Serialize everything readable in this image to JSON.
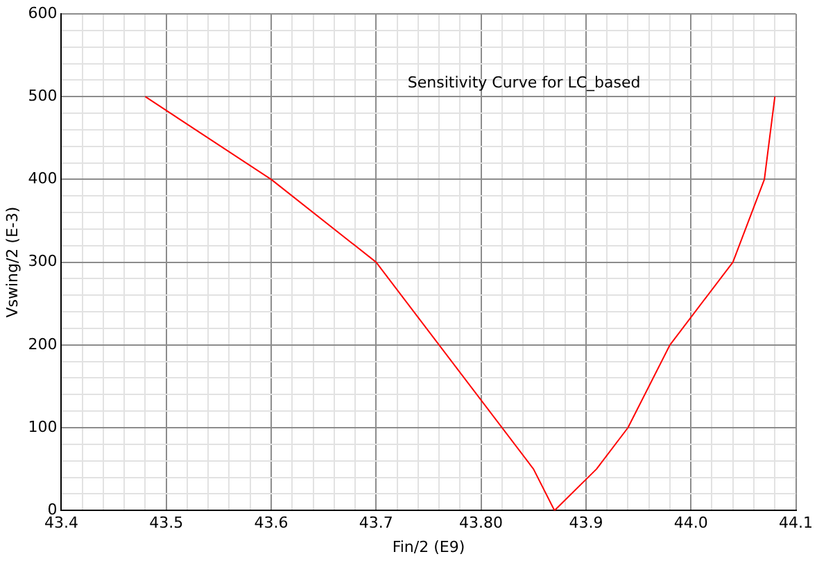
{
  "chart_data": {
    "type": "line",
    "title": "Sensitivity Curve for LC_based",
    "xlabel": "Fin/2 (E9)",
    "ylabel": "Vswing/2 (E-3)",
    "series": [
      {
        "color": "#ff0000",
        "x": [
          43.48,
          43.6,
          43.7,
          43.85,
          43.87,
          43.91,
          43.94,
          43.98,
          44.04,
          44.07,
          44.08
        ],
        "values": [
          500,
          400,
          300,
          50,
          0,
          50,
          100,
          200,
          300,
          400,
          500
        ]
      }
    ],
    "xlim": [
      43.4,
      44.1
    ],
    "ylim": [
      0,
      600
    ],
    "xticks": [
      43.4,
      {
        "value": 43.42,
        "label": null
      },
      {
        "value": 43.44,
        "label": null
      },
      {
        "value": 43.46,
        "label": null
      },
      {
        "value": 43.48,
        "label": null
      },
      43.5,
      {
        "value": 43.52,
        "label": null
      },
      {
        "value": 43.54,
        "label": null
      },
      {
        "value": 43.56,
        "label": null
      },
      {
        "value": 43.58,
        "label": null
      },
      43.6,
      {
        "value": 43.62,
        "label": null
      },
      {
        "value": 43.64,
        "label": null
      },
      {
        "value": 43.66,
        "label": null
      },
      {
        "value": 43.68,
        "label": null
      },
      43.7,
      {
        "value": 43.72,
        "label": null
      },
      {
        "value": 43.74,
        "label": null
      },
      {
        "value": 43.76,
        "label": null
      },
      {
        "value": 43.78,
        "label": null
      },
      {
        "value": 43.8,
        "label": "43.80"
      },
      {
        "value": 43.82,
        "label": null
      },
      {
        "value": 43.84,
        "label": null
      },
      {
        "value": 43.86,
        "label": null
      },
      {
        "value": 43.88,
        "label": null
      },
      43.9,
      {
        "value": 43.92,
        "label": null
      },
      {
        "value": 43.94,
        "label": null
      },
      {
        "value": 43.96,
        "label": null
      },
      {
        "value": 43.98,
        "label": null
      },
      {
        "value": 44,
        "label": "44.0"
      },
      {
        "value": 44.02,
        "label": null
      },
      {
        "value": 44.04,
        "label": null
      },
      {
        "value": 44.06,
        "label": null
      },
      {
        "value": 44.08,
        "label": null
      },
      44.1
    ],
    "yticks": [
      0,
      {
        "value": 20,
        "label": null
      },
      {
        "value": 40,
        "label": null
      },
      {
        "value": 60,
        "label": null
      },
      {
        "value": 80,
        "label": null
      },
      100,
      {
        "value": 120,
        "label": null
      },
      {
        "value": 140,
        "label": null
      },
      {
        "value": 160,
        "label": null
      },
      {
        "value": 180,
        "label": null
      },
      200,
      {
        "value": 220,
        "label": null
      },
      {
        "value": 240,
        "label": null
      },
      {
        "value": 260,
        "label": null
      },
      {
        "value": 280,
        "label": null
      },
      300,
      {
        "value": 320,
        "label": null
      },
      {
        "value": 340,
        "label": null
      },
      {
        "value": 360,
        "label": null
      },
      {
        "value": 380,
        "label": null
      },
      400,
      {
        "value": 420,
        "label": null
      },
      {
        "value": 440,
        "label": null
      },
      {
        "value": 460,
        "label": null
      },
      {
        "value": 480,
        "label": null
      },
      500,
      {
        "value": 520,
        "label": null
      },
      {
        "value": 540,
        "label": null
      },
      {
        "value": 560,
        "label": null
      },
      {
        "value": 580,
        "label": null
      },
      600
    ],
    "grid": true,
    "legend": false,
    "marker": "none",
    "line_style": "solid"
  }
}
